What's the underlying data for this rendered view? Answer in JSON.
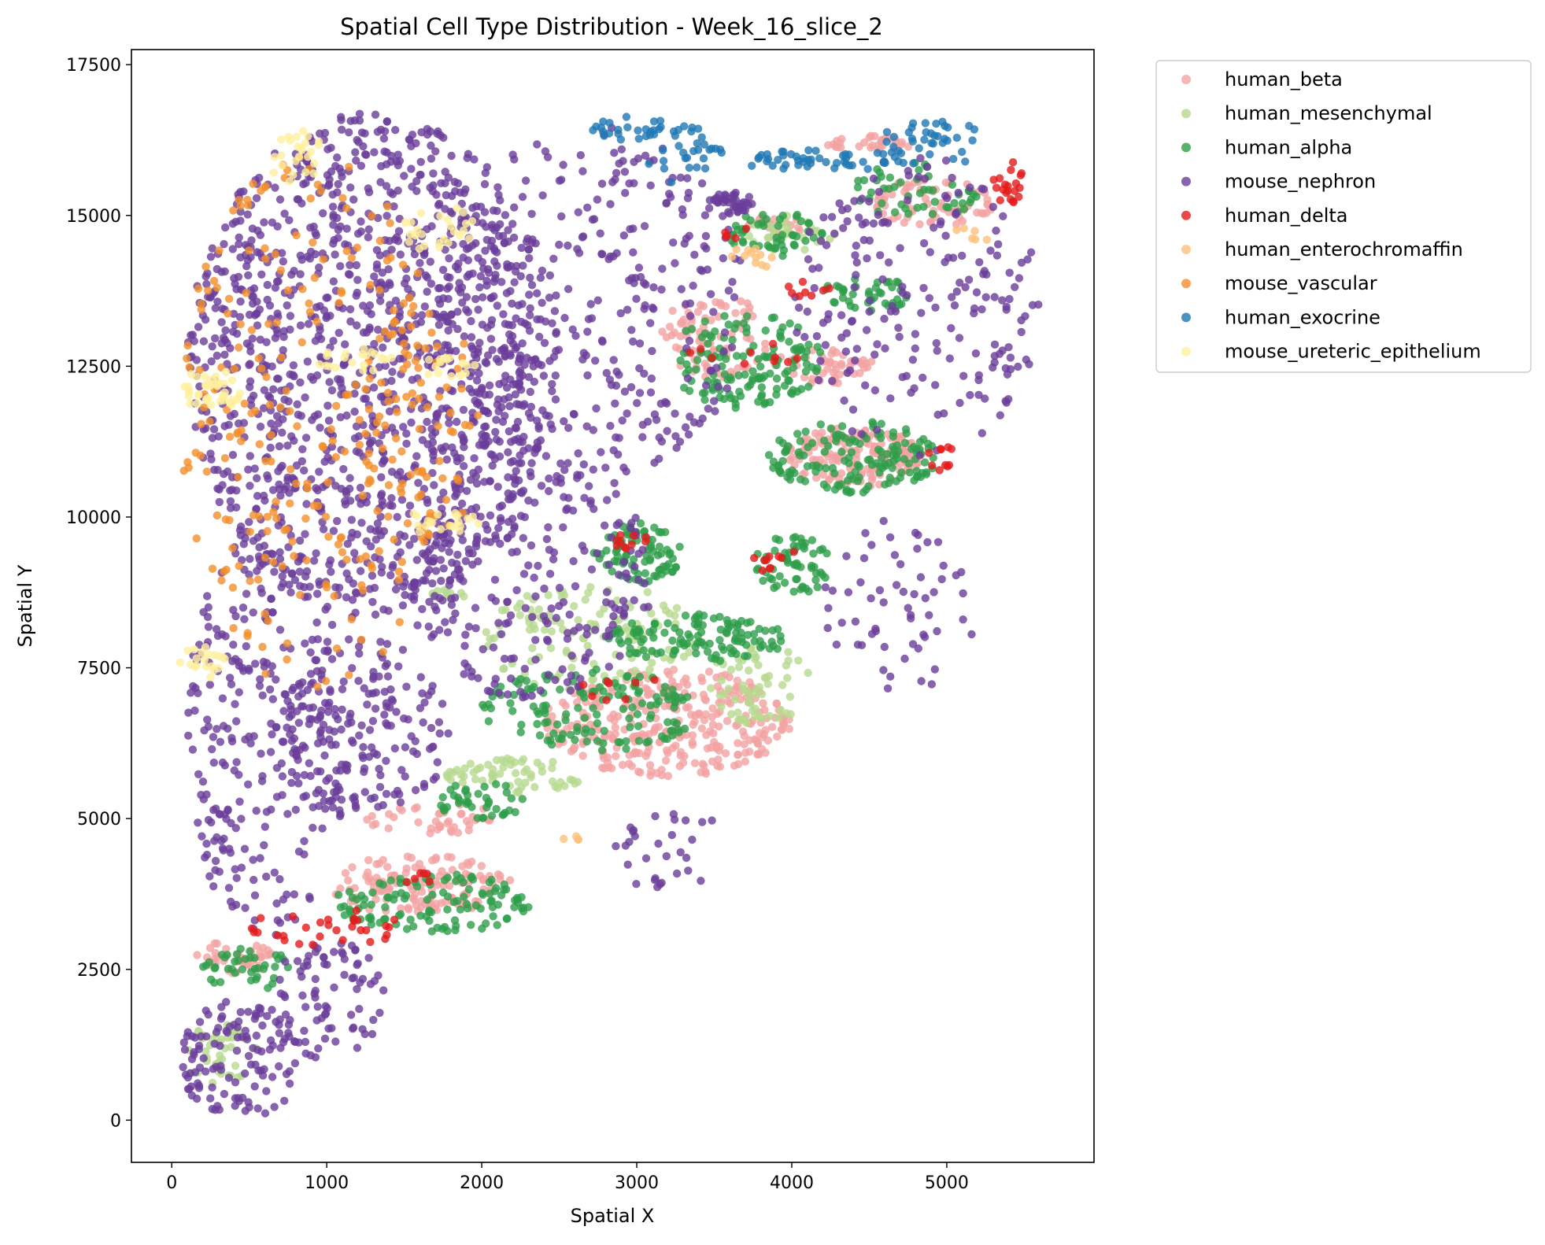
{
  "chart_data": {
    "type": "scatter",
    "title": "Spatial Cell Type Distribution - Week_16_slice_2",
    "xlabel": "Spatial X",
    "ylabel": "Spatial Y",
    "xlim": [
      -260,
      5950
    ],
    "ylim": [
      -700,
      17750
    ],
    "xticks": [
      0,
      1000,
      2000,
      3000,
      4000,
      5000
    ],
    "yticks": [
      0,
      2500,
      5000,
      7500,
      10000,
      12500,
      15000,
      17500
    ],
    "xtick_labels": [
      "0",
      "1000",
      "2000",
      "3000",
      "4000",
      "5000"
    ],
    "ytick_labels": [
      "0",
      "2500",
      "5000",
      "7500",
      "10000",
      "12500",
      "15000",
      "17500"
    ],
    "grid": false,
    "legend_position": "outside-top-right",
    "point_alpha": 0.8,
    "series": [
      {
        "name": "human_beta",
        "color": "#f4a3a3",
        "regions": [
          {
            "cx": 400,
            "cy": 2700,
            "rx": 250,
            "ry": 300,
            "n": 40
          },
          {
            "cx": 1600,
            "cy": 3900,
            "rx": 600,
            "ry": 500,
            "n": 140
          },
          {
            "cx": 1700,
            "cy": 5000,
            "rx": 450,
            "ry": 250,
            "n": 40
          },
          {
            "cx": 3200,
            "cy": 6600,
            "rx": 800,
            "ry": 900,
            "n": 320
          },
          {
            "cx": 3500,
            "cy": 13000,
            "rx": 350,
            "ry": 700,
            "n": 80
          },
          {
            "cx": 4400,
            "cy": 11000,
            "rx": 450,
            "ry": 500,
            "n": 150
          },
          {
            "cx": 4200,
            "cy": 12500,
            "rx": 350,
            "ry": 300,
            "n": 50
          },
          {
            "cx": 4900,
            "cy": 15200,
            "rx": 400,
            "ry": 400,
            "n": 70
          },
          {
            "cx": 4500,
            "cy": 16200,
            "rx": 300,
            "ry": 120,
            "n": 30
          },
          {
            "cx": 3900,
            "cy": 14800,
            "rx": 200,
            "ry": 200,
            "n": 20
          }
        ]
      },
      {
        "name": "human_mesenchymal",
        "color": "#b6d98f",
        "regions": [
          {
            "cx": 300,
            "cy": 1100,
            "rx": 250,
            "ry": 500,
            "n": 40
          },
          {
            "cx": 2200,
            "cy": 5700,
            "rx": 450,
            "ry": 300,
            "n": 60
          },
          {
            "cx": 2700,
            "cy": 8000,
            "rx": 700,
            "ry": 900,
            "n": 120
          },
          {
            "cx": 3800,
            "cy": 7200,
            "rx": 350,
            "ry": 700,
            "n": 60
          },
          {
            "cx": 4000,
            "cy": 14700,
            "rx": 300,
            "ry": 300,
            "n": 30
          },
          {
            "cx": 1800,
            "cy": 8700,
            "rx": 150,
            "ry": 100,
            "n": 10
          }
        ]
      },
      {
        "name": "human_alpha",
        "color": "#2e9e4a",
        "regions": [
          {
            "cx": 500,
            "cy": 2500,
            "rx": 300,
            "ry": 350,
            "n": 40
          },
          {
            "cx": 1700,
            "cy": 3600,
            "rx": 650,
            "ry": 500,
            "n": 120
          },
          {
            "cx": 2000,
            "cy": 5300,
            "rx": 300,
            "ry": 300,
            "n": 40
          },
          {
            "cx": 2700,
            "cy": 6800,
            "rx": 700,
            "ry": 700,
            "n": 140
          },
          {
            "cx": 3400,
            "cy": 8000,
            "rx": 600,
            "ry": 400,
            "n": 120
          },
          {
            "cx": 3000,
            "cy": 9400,
            "rx": 300,
            "ry": 500,
            "n": 80
          },
          {
            "cx": 4000,
            "cy": 9200,
            "rx": 250,
            "ry": 500,
            "n": 60
          },
          {
            "cx": 4400,
            "cy": 11000,
            "rx": 550,
            "ry": 600,
            "n": 150
          },
          {
            "cx": 3700,
            "cy": 12600,
            "rx": 500,
            "ry": 800,
            "n": 140
          },
          {
            "cx": 4500,
            "cy": 13700,
            "rx": 300,
            "ry": 300,
            "n": 40
          },
          {
            "cx": 4800,
            "cy": 15400,
            "rx": 400,
            "ry": 500,
            "n": 50
          },
          {
            "cx": 3900,
            "cy": 14700,
            "rx": 300,
            "ry": 400,
            "n": 50
          }
        ]
      },
      {
        "name": "mouse_nephron",
        "color": "#6a3d9a",
        "regions": [
          {
            "cx": 1300,
            "cy": 12500,
            "rx": 1200,
            "ry": 4200,
            "n": 1300
          },
          {
            "cx": 2700,
            "cy": 13500,
            "rx": 1000,
            "ry": 3000,
            "n": 350
          },
          {
            "cx": 600,
            "cy": 6500,
            "rx": 500,
            "ry": 3500,
            "n": 250
          },
          {
            "cx": 1200,
            "cy": 6500,
            "rx": 600,
            "ry": 1500,
            "n": 200
          },
          {
            "cx": 2300,
            "cy": 9000,
            "rx": 800,
            "ry": 2000,
            "n": 220
          },
          {
            "cx": 450,
            "cy": 1000,
            "rx": 400,
            "ry": 1000,
            "n": 120
          },
          {
            "cx": 1000,
            "cy": 2000,
            "rx": 400,
            "ry": 1000,
            "n": 80
          },
          {
            "cx": 4800,
            "cy": 13500,
            "rx": 800,
            "ry": 2500,
            "n": 200
          },
          {
            "cx": 4700,
            "cy": 8500,
            "rx": 500,
            "ry": 1500,
            "n": 60
          },
          {
            "cx": 3600,
            "cy": 15200,
            "rx": 150,
            "ry": 200,
            "n": 40
          },
          {
            "cx": 3200,
            "cy": 4500,
            "rx": 400,
            "ry": 700,
            "n": 30
          }
        ]
      },
      {
        "name": "human_delta",
        "color": "#e31a1c",
        "regions": [
          {
            "cx": 1000,
            "cy": 3200,
            "rx": 500,
            "ry": 300,
            "n": 30
          },
          {
            "cx": 1600,
            "cy": 4000,
            "rx": 100,
            "ry": 100,
            "n": 6
          },
          {
            "cx": 3000,
            "cy": 9600,
            "rx": 150,
            "ry": 150,
            "n": 10
          },
          {
            "cx": 3000,
            "cy": 7100,
            "rx": 400,
            "ry": 300,
            "n": 8
          },
          {
            "cx": 3700,
            "cy": 12700,
            "rx": 400,
            "ry": 200,
            "n": 10
          },
          {
            "cx": 4100,
            "cy": 13800,
            "rx": 150,
            "ry": 150,
            "n": 8
          },
          {
            "cx": 4950,
            "cy": 11000,
            "rx": 100,
            "ry": 250,
            "n": 10
          },
          {
            "cx": 5400,
            "cy": 15500,
            "rx": 100,
            "ry": 400,
            "n": 20
          },
          {
            "cx": 3650,
            "cy": 14700,
            "rx": 100,
            "ry": 100,
            "n": 5
          },
          {
            "cx": 3900,
            "cy": 9200,
            "rx": 150,
            "ry": 400,
            "n": 10
          }
        ]
      },
      {
        "name": "human_enterochromaffin",
        "color": "#fdc07a",
        "regions": [
          {
            "cx": 3750,
            "cy": 14300,
            "rx": 150,
            "ry": 200,
            "n": 12
          },
          {
            "cx": 2600,
            "cy": 4700,
            "rx": 100,
            "ry": 100,
            "n": 4
          },
          {
            "cx": 5200,
            "cy": 14700,
            "rx": 150,
            "ry": 150,
            "n": 6
          }
        ]
      },
      {
        "name": "mouse_vascular",
        "color": "#f28e2b",
        "regions": [
          {
            "cx": 900,
            "cy": 11500,
            "rx": 850,
            "ry": 4500,
            "n": 240
          },
          {
            "cx": 1600,
            "cy": 11500,
            "rx": 400,
            "ry": 2000,
            "n": 60
          }
        ]
      },
      {
        "name": "human_exocrine",
        "color": "#1f78b4",
        "regions": [
          {
            "cx": 2950,
            "cy": 16450,
            "rx": 250,
            "ry": 200,
            "n": 25
          },
          {
            "cx": 3300,
            "cy": 16000,
            "rx": 250,
            "ry": 500,
            "n": 30
          },
          {
            "cx": 4200,
            "cy": 15900,
            "rx": 500,
            "ry": 200,
            "n": 45
          },
          {
            "cx": 4900,
            "cy": 16200,
            "rx": 350,
            "ry": 400,
            "n": 40
          }
        ]
      },
      {
        "name": "mouse_ureteric_epithelium",
        "color": "#fff09e",
        "regions": [
          {
            "cx": 250,
            "cy": 12100,
            "rx": 200,
            "ry": 350,
            "n": 40
          },
          {
            "cx": 1200,
            "cy": 12600,
            "rx": 300,
            "ry": 200,
            "n": 20
          },
          {
            "cx": 1800,
            "cy": 12500,
            "rx": 200,
            "ry": 200,
            "n": 15
          },
          {
            "cx": 800,
            "cy": 16000,
            "rx": 200,
            "ry": 450,
            "n": 25
          },
          {
            "cx": 1700,
            "cy": 14800,
            "rx": 250,
            "ry": 400,
            "n": 25
          },
          {
            "cx": 1700,
            "cy": 9900,
            "rx": 300,
            "ry": 200,
            "n": 20
          },
          {
            "cx": 200,
            "cy": 7600,
            "rx": 150,
            "ry": 300,
            "n": 20
          }
        ]
      }
    ]
  }
}
